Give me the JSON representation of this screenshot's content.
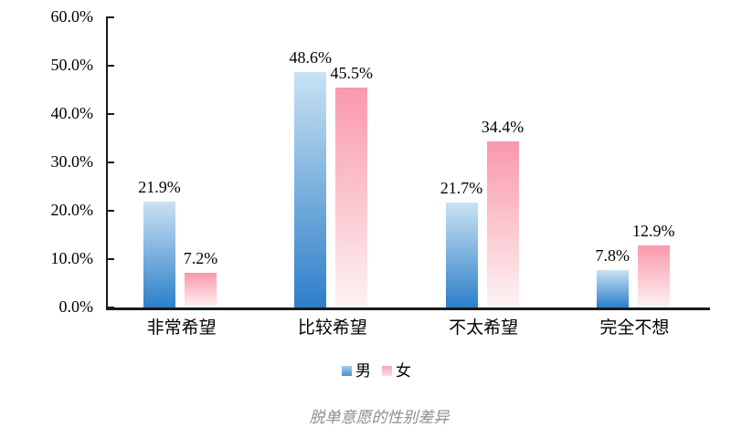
{
  "chart_data": {
    "type": "bar",
    "categories": [
      "非常希望",
      "比较希望",
      "不太希望",
      "完全不想"
    ],
    "series": [
      {
        "name": "男",
        "values": [
          21.9,
          48.6,
          21.7,
          7.8
        ]
      },
      {
        "name": "女",
        "values": [
          7.2,
          45.5,
          34.4,
          12.9
        ]
      }
    ],
    "data_labels": [
      [
        "21.9%",
        "48.6%",
        "21.7%",
        "7.8%"
      ],
      [
        "7.2%",
        "45.5%",
        "34.4%",
        "12.9%"
      ]
    ],
    "ylim": [
      0,
      60
    ],
    "ytick_step": 10,
    "ytick_labels": [
      "0.0%",
      "10.0%",
      "20.0%",
      "30.0%",
      "40.0%",
      "50.0%",
      "60.0%"
    ],
    "grid": false,
    "legend_position": "bottom",
    "title": "脱单意愿的性别差异",
    "xlabel": "",
    "ylabel": ""
  },
  "legend": {
    "items": [
      {
        "label": "男"
      },
      {
        "label": "女"
      }
    ]
  },
  "caption": "脱单意愿的性别差异",
  "colors": {
    "male_bar_top": "#c9e2f4",
    "male_bar_bottom": "#2d7fc9",
    "female_bar_top": "#f998ac",
    "female_bar_bottom": "#fdf3f3",
    "male_swatch_top": "#a8cdec",
    "male_swatch_bottom": "#4a90d0",
    "female_swatch_top": "#f9a6b7",
    "female_swatch_bottom": "#fbdee3",
    "axis": "#1a1a1a",
    "label_text": "#000000",
    "caption_text": "#8e8e8e"
  }
}
